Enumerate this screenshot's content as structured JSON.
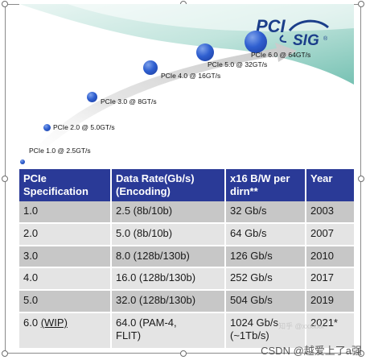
{
  "logo": {
    "line1": "PCI",
    "line2": "SIG",
    "mark": "®"
  },
  "generations": [
    {
      "label": "PCIe 1.0 @ 2.5GT/s"
    },
    {
      "label": "PCIe 2.0 @ 5.0GT/s"
    },
    {
      "label": "PCIe 3.0 @ 8GT/s"
    },
    {
      "label": "PCIe 4.0 @ 16GT/s"
    },
    {
      "label": "PCIe 5.0 @ 32GT/s"
    },
    {
      "label": "PCIe 6.0 @ 64GT/s"
    }
  ],
  "table": {
    "headers": [
      "PCIe Specification",
      "Data Rate(Gb/s) (Encoding)",
      "x16 B/W per dirn**",
      "Year"
    ],
    "rows": [
      {
        "spec": "1.0",
        "rate": "2.5 (8b/10b)",
        "bw": "32 Gb/s",
        "year": "2003"
      },
      {
        "spec": "2.0",
        "rate": "5.0 (8b/10b)",
        "bw": "64 Gb/s",
        "year": "2007"
      },
      {
        "spec": "3.0",
        "rate": "8.0 (128b/130b)",
        "bw": "126 Gb/s",
        "year": "2010"
      },
      {
        "spec": "4.0",
        "rate": "16.0 (128b/130b)",
        "bw": "252 Gb/s",
        "year": "2017"
      },
      {
        "spec": "5.0",
        "rate": "32.0 (128b/130b)",
        "bw": "504 Gb/s",
        "year": "2019"
      },
      {
        "spec": "6.0",
        "spec_note": "(WIP)",
        "rate": "64.0 (PAM-4,",
        "rate_line2": "FLIT)",
        "bw": "1024 Gb/s",
        "bw_line2": "(~1Tb/s)",
        "year": "2021*"
      }
    ]
  },
  "watermark": {
    "text": "CSDN @越爱上了a强",
    "ghost": "知乎 @xxxxxx"
  },
  "colors": {
    "header_bg": "#2a3a97",
    "row_dark": "#c7c7c7",
    "row_light": "#e4e4e4",
    "dot_blue": "#2f5fd0"
  }
}
